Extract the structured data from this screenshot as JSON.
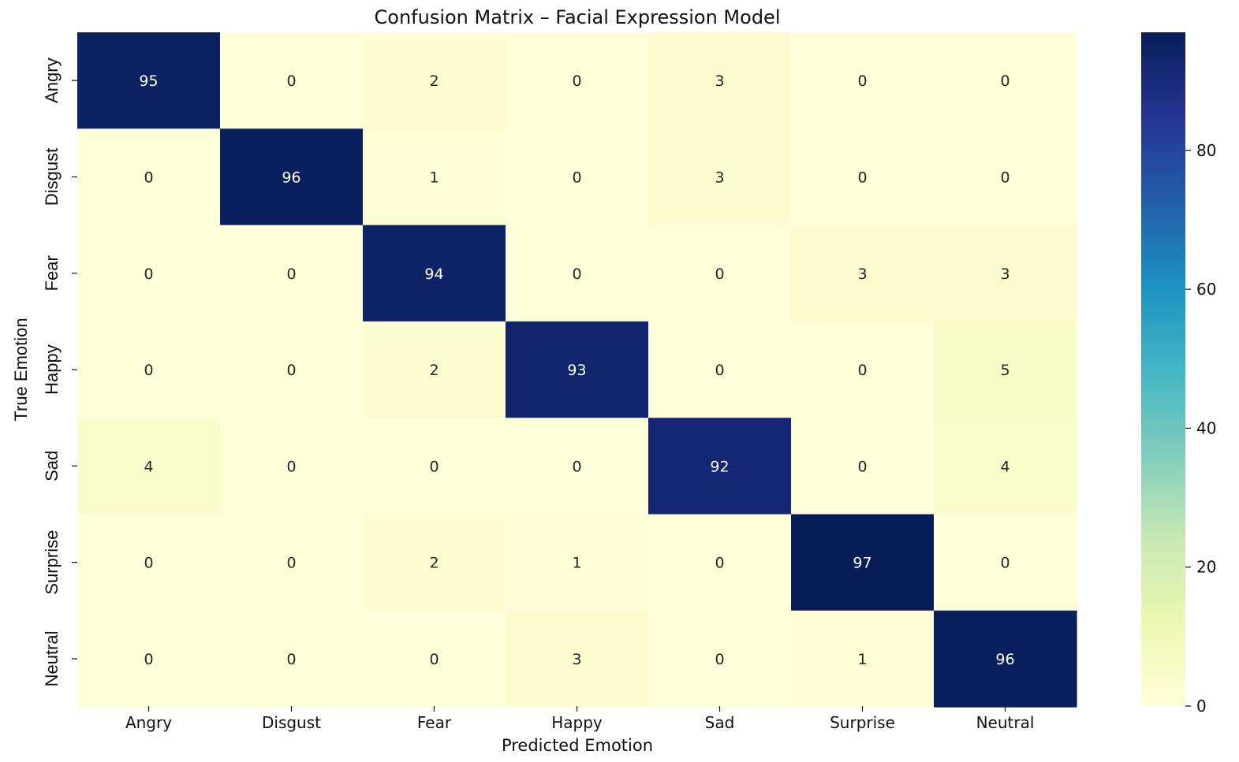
{
  "chart_data": {
    "type": "heatmap",
    "title": "Confusion Matrix – Facial Expression Model",
    "xlabel": "Predicted Emotion",
    "ylabel": "True Emotion",
    "x_categories": [
      "Angry",
      "Disgust",
      "Fear",
      "Happy",
      "Sad",
      "Surprise",
      "Neutral"
    ],
    "y_categories": [
      "Angry",
      "Disgust",
      "Fear",
      "Happy",
      "Sad",
      "Surprise",
      "Neutral"
    ],
    "values": [
      [
        95,
        0,
        2,
        0,
        3,
        0,
        0
      ],
      [
        0,
        96,
        1,
        0,
        3,
        0,
        0
      ],
      [
        0,
        0,
        94,
        0,
        0,
        3,
        3
      ],
      [
        0,
        0,
        2,
        93,
        0,
        0,
        5
      ],
      [
        4,
        0,
        0,
        0,
        92,
        0,
        4
      ],
      [
        0,
        0,
        2,
        1,
        0,
        97,
        0
      ],
      [
        0,
        0,
        0,
        3,
        0,
        1,
        96
      ]
    ],
    "colormap": "YlGnBu",
    "colorbar": {
      "range": [
        0,
        97
      ],
      "ticks": [
        0,
        20,
        40,
        60,
        80
      ]
    },
    "annotations": true,
    "grid": false,
    "legend": "colorbar-right"
  }
}
